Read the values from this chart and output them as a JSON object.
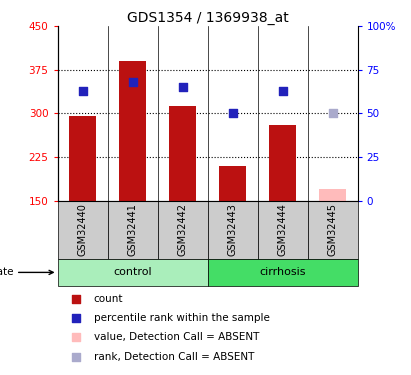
{
  "title": "GDS1354 / 1369938_at",
  "samples": [
    "GSM32440",
    "GSM32441",
    "GSM32442",
    "GSM32443",
    "GSM32444",
    "GSM32445"
  ],
  "count_values": [
    296,
    390,
    312,
    210,
    280,
    170
  ],
  "count_absent": [
    false,
    false,
    false,
    false,
    false,
    true
  ],
  "rank_values": [
    63,
    68,
    65,
    50,
    63,
    50
  ],
  "rank_absent": [
    false,
    false,
    false,
    false,
    false,
    true
  ],
  "ylim_left": [
    150,
    450
  ],
  "ylim_right": [
    0,
    100
  ],
  "yticks_left": [
    150,
    225,
    300,
    375,
    450
  ],
  "yticks_right": [
    0,
    25,
    50,
    75,
    100
  ],
  "ytick_labels_right": [
    "0",
    "25",
    "50",
    "75",
    "100%"
  ],
  "hlines": [
    225,
    300,
    375
  ],
  "bar_width": 0.55,
  "red_bar_color": "#bb1111",
  "pink_bar_color": "#ffbbbb",
  "blue_dot_color": "#2222bb",
  "light_blue_dot_color": "#aaaacc",
  "control_color": "#aaeebb",
  "cirrhosis_color": "#44dd66",
  "group_bg_color": "#cccccc",
  "plot_bg_color": "#ffffff",
  "title_fontsize": 10,
  "group_ranges": [
    {
      "name": "control",
      "start": 0,
      "end": 2
    },
    {
      "name": "cirrhosis",
      "start": 3,
      "end": 5
    }
  ],
  "legend_items": [
    {
      "label": "count",
      "color": "#bb1111"
    },
    {
      "label": "percentile rank within the sample",
      "color": "#2222bb"
    },
    {
      "label": "value, Detection Call = ABSENT",
      "color": "#ffbbbb"
    },
    {
      "label": "rank, Detection Call = ABSENT",
      "color": "#aaaacc"
    }
  ]
}
